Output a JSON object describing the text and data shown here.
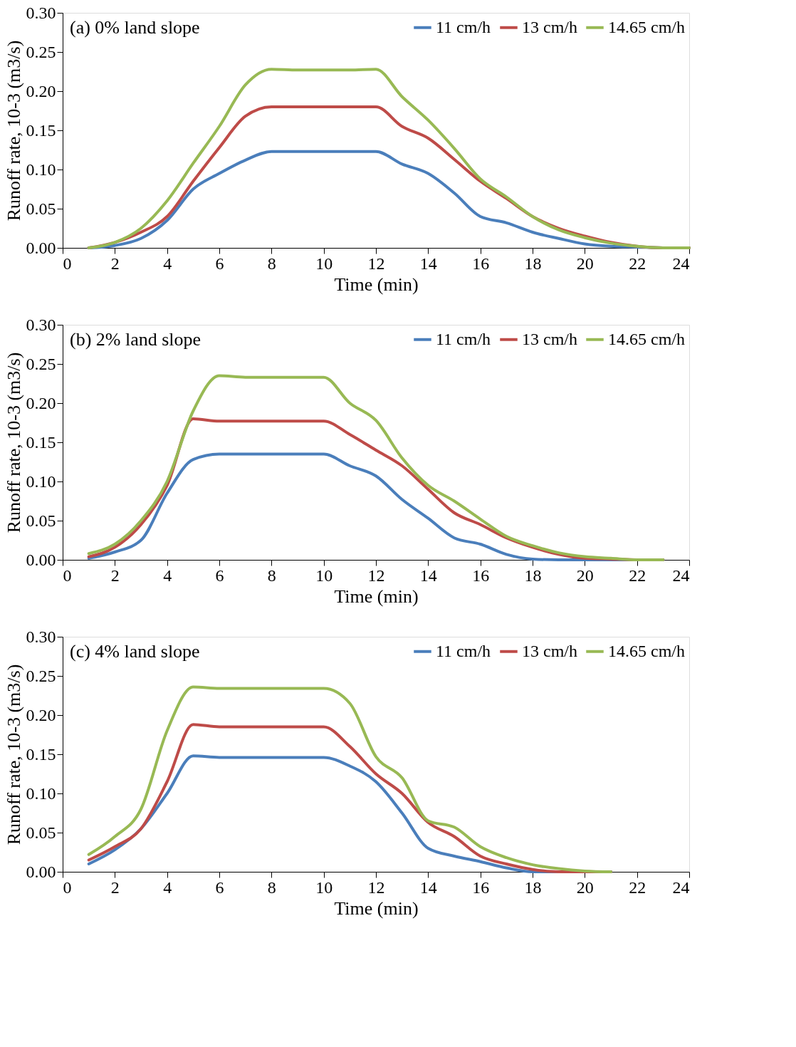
{
  "chart_data": [
    {
      "type": "line",
      "title": "(a) 0% land slope",
      "xlabel": "Time (min)",
      "ylabel": "Runoff rate, 10-3 (m3/s)",
      "x": [
        1,
        2,
        3,
        4,
        5,
        6,
        7,
        8,
        9,
        10,
        11,
        12,
        13,
        14,
        15,
        16,
        17,
        18,
        19,
        20,
        21,
        22,
        23,
        24
      ],
      "series": [
        {
          "name": "11 cm/h",
          "color": "#4a7ebb",
          "values": [
            0,
            0.003,
            0.012,
            0.035,
            0.075,
            0.095,
            0.112,
            0.123,
            0.123,
            0.123,
            0.123,
            0.123,
            0.107,
            0.095,
            0.07,
            0.04,
            0.032,
            0.02,
            0.012,
            0.005,
            0.002,
            0.001,
            0,
            0
          ]
        },
        {
          "name": "13 cm/h",
          "color": "#be4b48",
          "values": [
            0,
            0.007,
            0.02,
            0.04,
            0.085,
            0.128,
            0.168,
            0.18,
            0.18,
            0.18,
            0.18,
            0.18,
            0.155,
            0.14,
            0.113,
            0.085,
            0.063,
            0.04,
            0.025,
            0.015,
            0.007,
            0.002,
            0,
            0
          ]
        },
        {
          "name": "14.65 cm/h",
          "color": "#98b954",
          "values": [
            0,
            0.007,
            0.025,
            0.06,
            0.108,
            0.155,
            0.208,
            0.228,
            0.227,
            0.227,
            0.227,
            0.228,
            0.193,
            0.163,
            0.127,
            0.088,
            0.065,
            0.04,
            0.023,
            0.013,
            0.006,
            0.002,
            0,
            0
          ]
        }
      ],
      "xlim": [
        0,
        24
      ],
      "xticks": [
        0,
        2,
        4,
        6,
        8,
        10,
        12,
        14,
        16,
        18,
        20,
        22,
        24
      ],
      "ylim": [
        0,
        0.3
      ],
      "yticks": [
        {
          "value": 0,
          "label": "0.00"
        },
        {
          "value": 0.05,
          "label": "0.05"
        },
        {
          "value": 0.1,
          "label": "0.10"
        },
        {
          "value": 0.15,
          "label": "0.15"
        },
        {
          "value": 0.2,
          "label": "0.20"
        },
        {
          "value": 0.25,
          "label": "0.25"
        },
        {
          "value": 0.3,
          "label": "0.30"
        }
      ],
      "grid": false,
      "legend": "top right",
      "line_style": "solid",
      "marker": "none"
    },
    {
      "type": "line",
      "title": "(b) 2% land slope",
      "xlabel": "Time (min)",
      "ylabel": "Runoff rate, 10-3 (m3/s)",
      "x": [
        1,
        2,
        3,
        4,
        5,
        6,
        7,
        8,
        9,
        10,
        11,
        12,
        13,
        14,
        15,
        16,
        17,
        18,
        19,
        20,
        21,
        22,
        23
      ],
      "series": [
        {
          "name": "11 cm/h",
          "color": "#4a7ebb",
          "values": [
            0.002,
            0.01,
            0.025,
            0.085,
            0.128,
            0.135,
            0.135,
            0.135,
            0.135,
            0.135,
            0.12,
            0.107,
            0.077,
            0.053,
            0.028,
            0.02,
            0.007,
            0.001,
            0,
            0,
            0,
            0,
            0
          ]
        },
        {
          "name": "13 cm/h",
          "color": "#be4b48",
          "values": [
            0.004,
            0.016,
            0.045,
            0.095,
            0.18,
            0.177,
            0.177,
            0.177,
            0.177,
            0.177,
            0.16,
            0.14,
            0.12,
            0.09,
            0.06,
            0.045,
            0.028,
            0.016,
            0.007,
            0.002,
            0.001,
            0,
            0
          ]
        },
        {
          "name": "14.65 cm/h",
          "color": "#98b954",
          "values": [
            0.008,
            0.02,
            0.05,
            0.1,
            0.19,
            0.235,
            0.233,
            0.233,
            0.233,
            0.233,
            0.2,
            0.178,
            0.13,
            0.095,
            0.075,
            0.052,
            0.03,
            0.018,
            0.009,
            0.004,
            0.002,
            0,
            0
          ]
        }
      ],
      "xlim": [
        0,
        24
      ],
      "xticks": [
        0,
        2,
        4,
        6,
        8,
        10,
        12,
        14,
        16,
        18,
        20,
        22,
        24
      ],
      "ylim": [
        0,
        0.3
      ],
      "yticks": [
        {
          "value": 0,
          "label": "0.00"
        },
        {
          "value": 0.05,
          "label": "0.05"
        },
        {
          "value": 0.1,
          "label": "0.10"
        },
        {
          "value": 0.15,
          "label": "0.15"
        },
        {
          "value": 0.2,
          "label": "0.20"
        },
        {
          "value": 0.25,
          "label": "0.25"
        },
        {
          "value": 0.3,
          "label": "0.30"
        }
      ],
      "grid": false,
      "legend": "top right",
      "line_style": "solid",
      "marker": "none"
    },
    {
      "type": "line",
      "title": "(c) 4% land slope",
      "xlabel": "Time (min)",
      "ylabel": "Runoff rate, 10-3 (m3/s)",
      "x": [
        1,
        2,
        3,
        4,
        5,
        6,
        7,
        8,
        9,
        10,
        11,
        12,
        13,
        14,
        15,
        16,
        17,
        18,
        19,
        20,
        21
      ],
      "series": [
        {
          "name": "11 cm/h",
          "color": "#4a7ebb",
          "values": [
            0.01,
            0.028,
            0.055,
            0.1,
            0.148,
            0.146,
            0.146,
            0.146,
            0.146,
            0.146,
            0.135,
            0.115,
            0.075,
            0.03,
            0.02,
            0.013,
            0.005,
            0,
            0,
            0,
            0
          ]
        },
        {
          "name": "13 cm/h",
          "color": "#be4b48",
          "values": [
            0.015,
            0.032,
            0.055,
            0.115,
            0.188,
            0.185,
            0.185,
            0.185,
            0.185,
            0.185,
            0.16,
            0.125,
            0.1,
            0.063,
            0.045,
            0.02,
            0.01,
            0.003,
            0,
            0,
            0
          ]
        },
        {
          "name": "14.65 cm/h",
          "color": "#98b954",
          "values": [
            0.022,
            0.045,
            0.08,
            0.18,
            0.236,
            0.234,
            0.234,
            0.234,
            0.234,
            0.234,
            0.215,
            0.147,
            0.12,
            0.065,
            0.057,
            0.032,
            0.018,
            0.009,
            0.004,
            0.001,
            0
          ]
        }
      ],
      "xlim": [
        0,
        24
      ],
      "xticks": [
        0,
        2,
        4,
        6,
        8,
        10,
        12,
        14,
        16,
        18,
        20,
        22,
        24
      ],
      "ylim": [
        0,
        0.3
      ],
      "yticks": [
        {
          "value": 0,
          "label": "0.00"
        },
        {
          "value": 0.05,
          "label": "0.05"
        },
        {
          "value": 0.1,
          "label": "0.10"
        },
        {
          "value": 0.15,
          "label": "0.15"
        },
        {
          "value": 0.2,
          "label": "0.20"
        },
        {
          "value": 0.25,
          "label": "0.25"
        },
        {
          "value": 0.3,
          "label": "0.30"
        }
      ],
      "grid": false,
      "legend": "top right",
      "line_style": "solid",
      "marker": "none"
    }
  ]
}
